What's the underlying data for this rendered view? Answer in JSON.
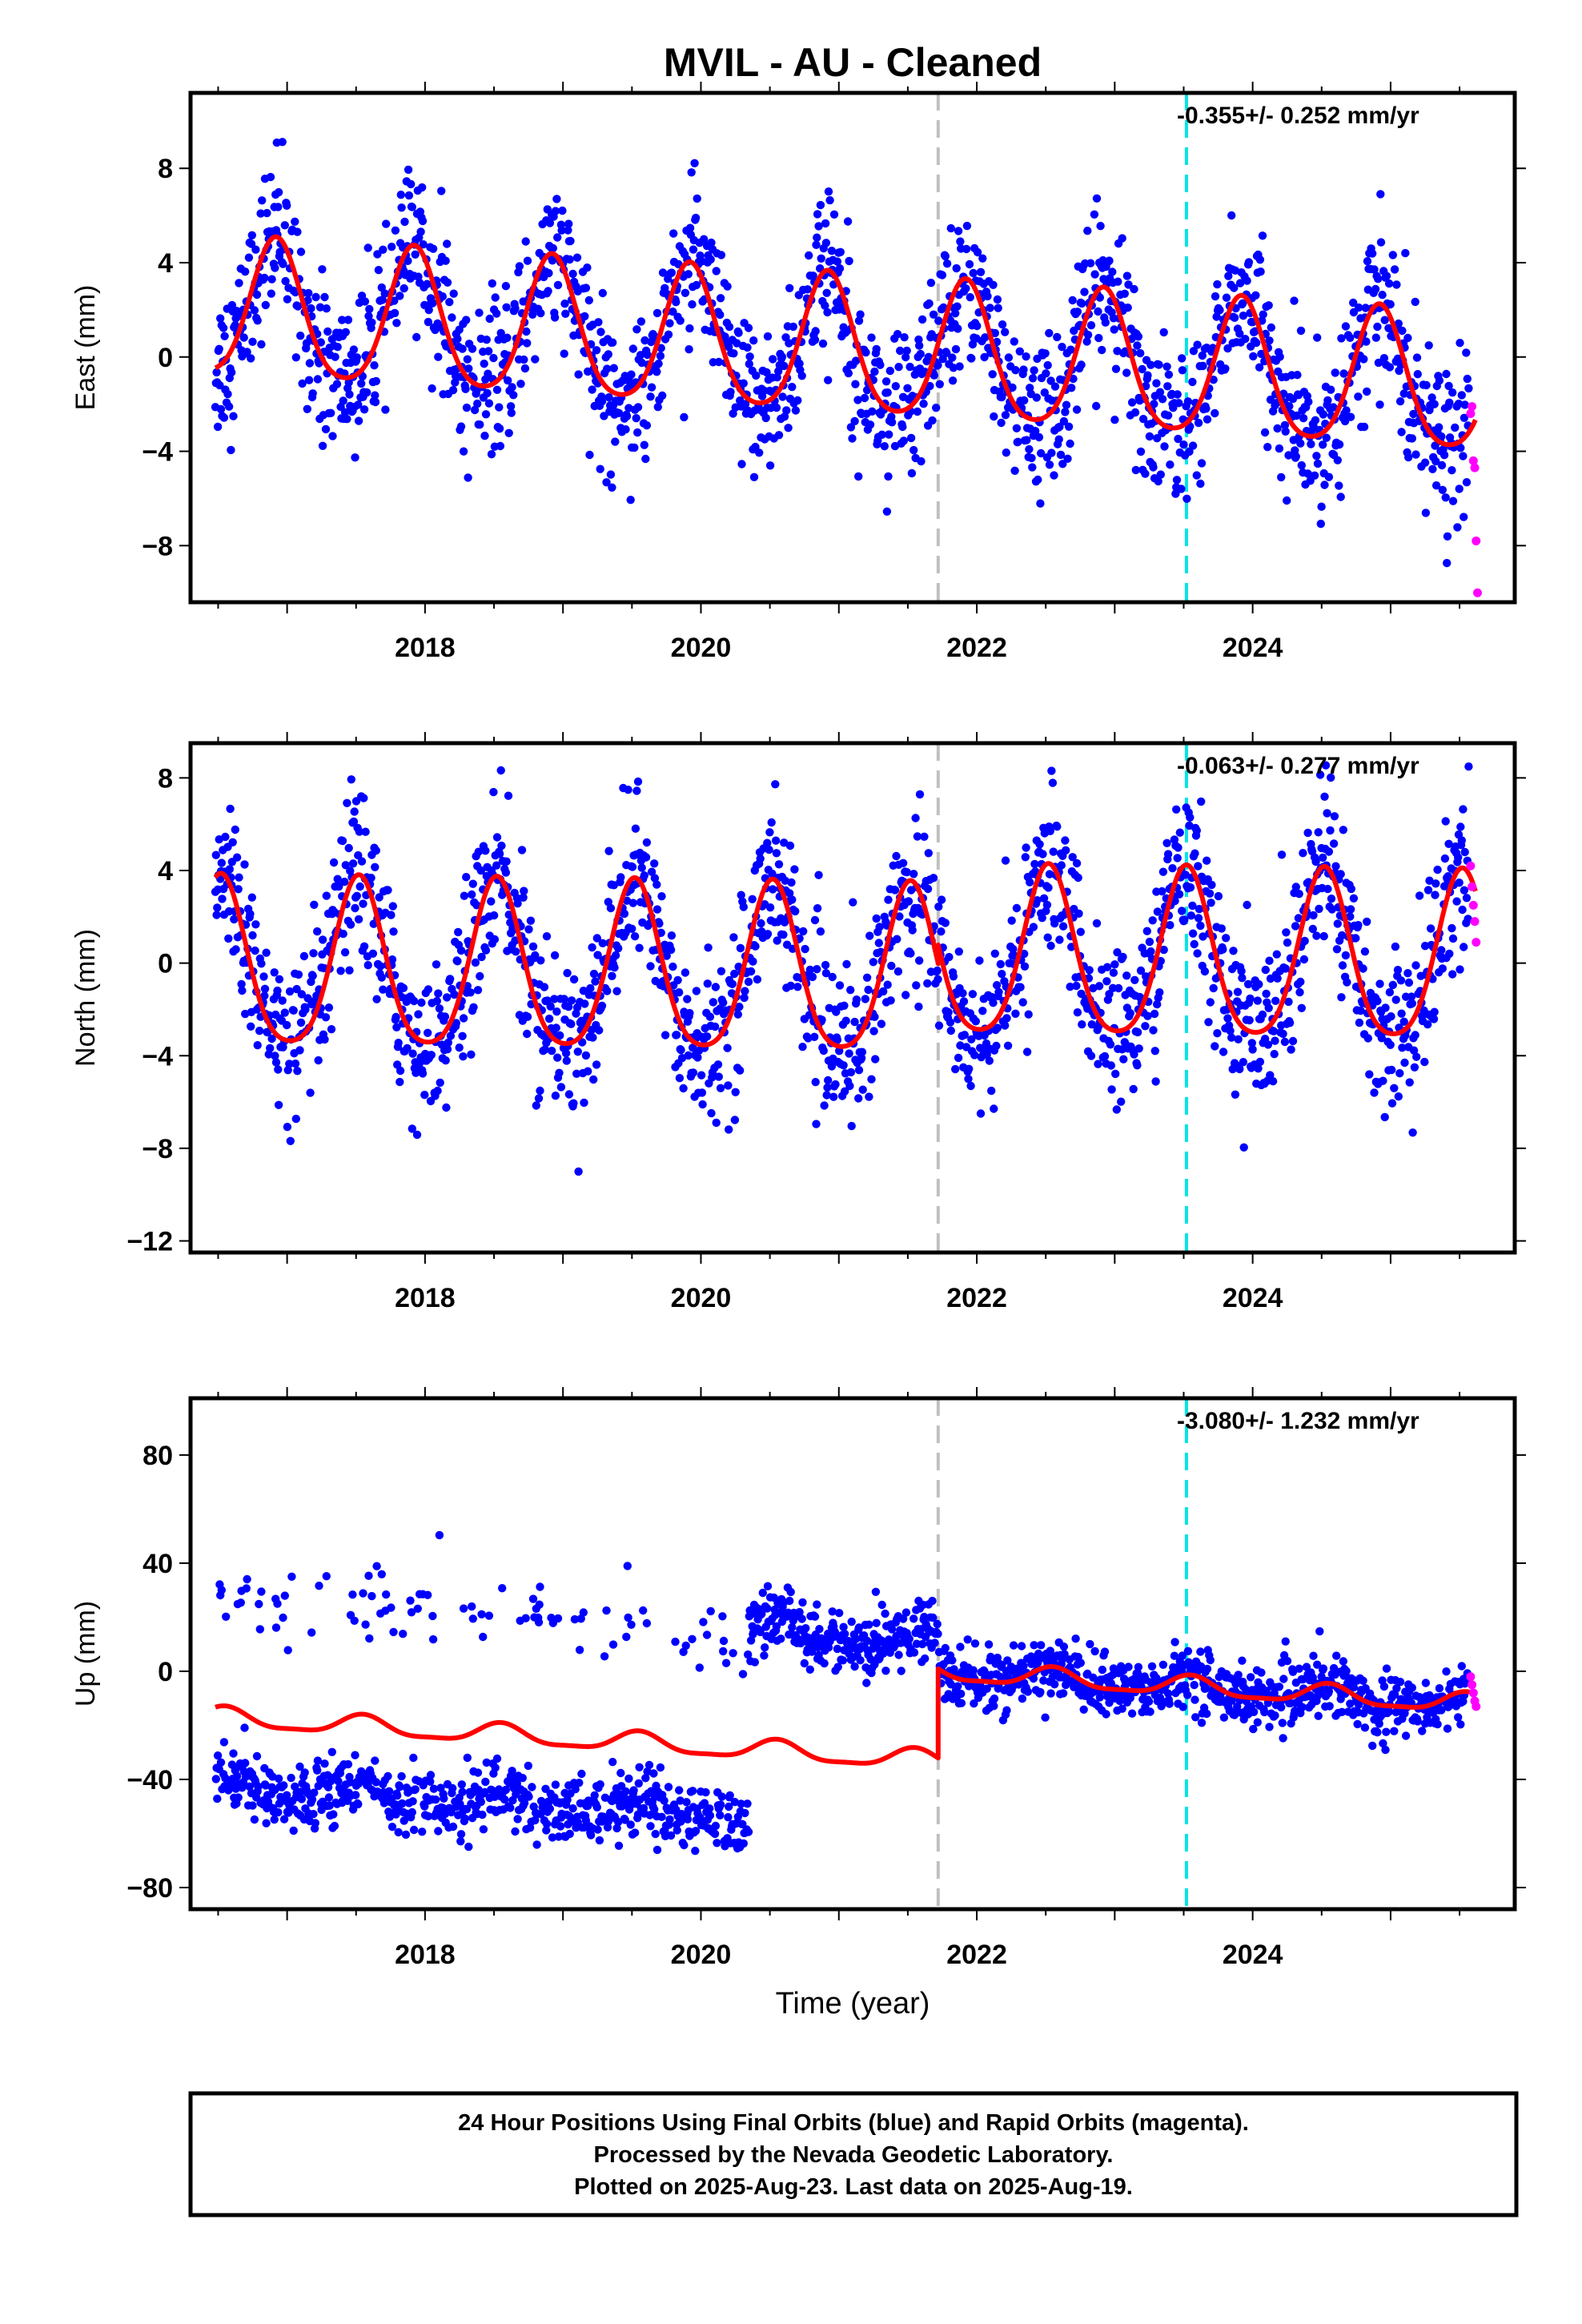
{
  "title": "MVIL  - AU - Cleaned",
  "footer": {
    "line1": "24 Hour Positions Using Final Orbits (blue) and Rapid Orbits (magenta).",
    "line2": "Processed by the Nevada Geodetic Laboratory.",
    "line3": "Plotted on 2025-Aug-23. Last data on 2025-Aug-19."
  },
  "colors": {
    "final": "#0000ff",
    "rapid": "#ff00ff",
    "model": "#ff0000",
    "equipment_change": "#c0c0c0",
    "earthquake": "#00e5e5"
  },
  "chart_data": [
    {
      "type": "scatter",
      "name": "east",
      "ylabel": "East (mm)",
      "xlabel": "",
      "xlim": [
        2016.3,
        2025.9
      ],
      "ylim": [
        -10.4,
        11.2
      ],
      "xticks": [
        2018,
        2020,
        2022,
        2024
      ],
      "yticks": [
        8,
        4,
        0,
        -4,
        -8
      ],
      "ytick_labels": [
        "8",
        "4",
        "0",
        "−4",
        "−8"
      ],
      "rate_label": "-0.355+/- 0.252 mm/yr",
      "vlines": [
        {
          "x": 2021.72,
          "kind": "equipment_change"
        },
        {
          "x": 2023.52,
          "kind": "earthquake"
        }
      ],
      "model": {
        "offset": 0.3,
        "rate": -0.355,
        "annual_amp": 2.9,
        "annual_peak": 0.92,
        "semi_amp": 0.45,
        "step_at": null,
        "step_before": 0,
        "scatter": 1.6
      },
      "rapid_points": [
        [
          2025.58,
          -2.4
        ],
        [
          2025.59,
          -2.1
        ],
        [
          2025.6,
          -4.4
        ],
        [
          2025.61,
          -4.7
        ],
        [
          2025.62,
          -7.8
        ],
        [
          2025.63,
          -10.0
        ]
      ]
    },
    {
      "type": "scatter",
      "name": "north",
      "ylabel": "North (mm)",
      "xlabel": "",
      "xlim": [
        2016.3,
        2025.9
      ],
      "ylim": [
        -12.5,
        9.5
      ],
      "xticks": [
        2018,
        2020,
        2022,
        2024
      ],
      "yticks": [
        8,
        4,
        0,
        -4,
        -8,
        -12
      ],
      "ytick_labels": [
        "8",
        "4",
        "0",
        "−4",
        "−8",
        "−12"
      ],
      "rate_label": "-0.063+/- 0.277 mm/yr",
      "vlines": [
        {
          "x": 2021.72,
          "kind": "equipment_change"
        },
        {
          "x": 2023.52,
          "kind": "earthquake"
        }
      ],
      "model": {
        "offset": 0.2,
        "rate": -0.063,
        "annual_amp": 3.6,
        "annual_peak": 0.52,
        "semi_amp": 0.6,
        "step_at": 2021.72,
        "step_before": -0.8,
        "scatter": 1.7
      },
      "rapid_points": [
        [
          2025.58,
          4.2
        ],
        [
          2025.59,
          3.3
        ],
        [
          2025.6,
          2.5
        ],
        [
          2025.61,
          1.8
        ],
        [
          2025.62,
          0.9
        ]
      ]
    },
    {
      "type": "scatter",
      "name": "up",
      "ylabel": "Up (mm)",
      "xlabel": "Time (year)",
      "xlim": [
        2016.3,
        2025.9
      ],
      "ylim": [
        -88,
        101
      ],
      "xticks": [
        2018,
        2020,
        2022,
        2024
      ],
      "yticks": [
        80,
        40,
        0,
        -40,
        -80
      ],
      "ytick_labels": [
        "80",
        "40",
        "0",
        "−40",
        "−80"
      ],
      "rate_label": "-3.080+/- 1.232 mm/yr",
      "vlines": [
        {
          "x": 2021.72,
          "kind": "equipment_change"
        },
        {
          "x": 2023.52,
          "kind": "earthquake"
        }
      ],
      "model": {
        "offset": 2.0,
        "rate": -3.08,
        "annual_amp": 3.5,
        "annual_peak": 0.55,
        "semi_amp": 1.0,
        "step_at": 2021.72,
        "step_before": -33,
        "scatter": 5.5
      },
      "rapid_points": [
        [
          2025.58,
          -2
        ],
        [
          2025.59,
          -5
        ],
        [
          2025.6,
          -8
        ],
        [
          2025.61,
          -11
        ],
        [
          2025.62,
          -13
        ]
      ]
    }
  ]
}
